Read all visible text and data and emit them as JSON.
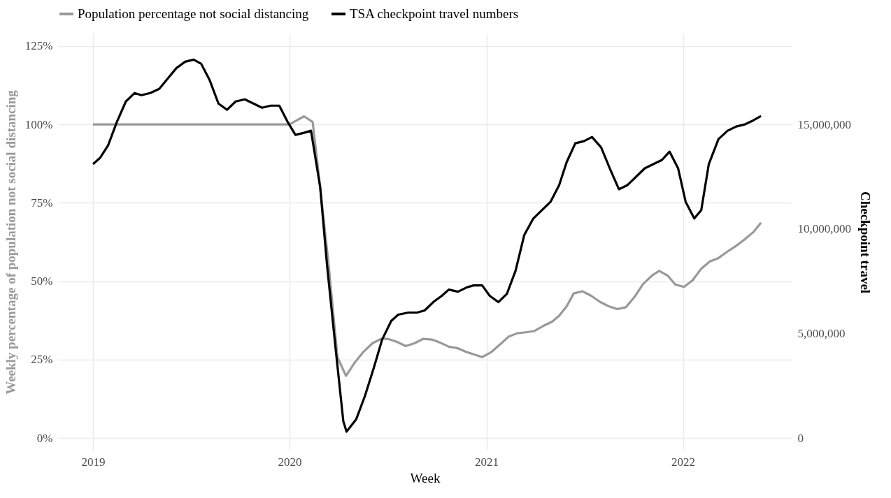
{
  "chart_data": {
    "type": "line",
    "xlabel": "Week",
    "ylabel": "Weekly percentage of population not social distancing",
    "y2label": "Checkpoint travel",
    "xlim": [
      "2018-10-28",
      "2022-07-22"
    ],
    "xticks": [
      "2019",
      "2020",
      "2021",
      "2022"
    ],
    "ylim": [
      -4,
      129
    ],
    "yticks": [
      {
        "value": 0,
        "label": "0%"
      },
      {
        "value": 25,
        "label": "25%"
      },
      {
        "value": 50,
        "label": "50%"
      },
      {
        "value": 75,
        "label": "75%"
      },
      {
        "value": 100,
        "label": "100%"
      },
      {
        "value": 125,
        "label": "125%"
      }
    ],
    "y2lim": [
      -600000,
      19350000
    ],
    "y2ticks": [
      0,
      {
        "value": 5000000,
        "label": "5,000,000"
      },
      {
        "value": 10000000,
        "label": "10,000,000"
      },
      {
        "value": 15000000,
        "label": "15,000,000"
      }
    ],
    "grid": true,
    "legend": "top",
    "series": [
      {
        "name": "Population percentage not social distancing",
        "color": "#999999",
        "x": [
          "2019-01-01",
          "2019-07-01",
          "2020-01-01",
          "2020-01-28",
          "2020-02-13",
          "2020-02-27",
          "2020-03-14",
          "2020-03-30",
          "2020-04-15",
          "2020-05-01",
          "2020-05-17",
          "2020-06-03",
          "2020-06-19",
          "2020-07-02",
          "2020-07-18",
          "2020-08-04",
          "2020-08-20",
          "2020-09-05",
          "2020-09-21",
          "2020-10-07",
          "2020-10-23",
          "2020-11-09",
          "2020-11-25",
          "2020-12-11",
          "2020-12-24",
          "2021-01-10",
          "2021-01-26",
          "2021-02-11",
          "2021-02-27",
          "2021-03-15",
          "2021-03-31",
          "2021-04-16",
          "2021-05-03",
          "2021-05-16",
          "2021-05-30",
          "2021-06-12",
          "2021-06-28",
          "2021-07-14",
          "2021-07-31",
          "2021-08-16",
          "2021-09-01",
          "2021-09-17",
          "2021-10-03",
          "2021-10-19",
          "2021-11-05",
          "2021-11-18",
          "2021-12-04",
          "2021-12-18",
          "2022-01-03",
          "2022-01-19",
          "2022-02-04",
          "2022-02-20",
          "2022-03-08",
          "2022-03-25",
          "2022-04-10",
          "2022-04-26",
          "2022-05-12",
          "2022-05-26"
        ],
        "values": [
          100,
          100,
          100,
          102.6,
          100.8,
          80,
          54.7,
          25.8,
          19.8,
          24,
          27.4,
          30.2,
          31.6,
          31.6,
          30.7,
          29.3,
          30.2,
          31.6,
          31.4,
          30.4,
          29.1,
          28.6,
          27.4,
          26.5,
          25.8,
          27.4,
          29.8,
          32.3,
          33.4,
          33.7,
          34.1,
          35.7,
          37.1,
          39,
          42,
          46.1,
          46.8,
          45.4,
          43.4,
          42,
          41.1,
          41.7,
          45,
          49.1,
          51.9,
          53.3,
          51.7,
          48.9,
          48.2,
          50.3,
          54,
          56.3,
          57.4,
          59.5,
          61.3,
          63.4,
          65.7,
          68.7
        ]
      },
      {
        "name": "TSA checkpoint travel numbers",
        "color": "#000000",
        "axis": "y2",
        "x": [
          "2019-01-01",
          "2019-01-14",
          "2019-01-29",
          "2019-02-14",
          "2019-03-03",
          "2019-03-19",
          "2019-04-01",
          "2019-04-17",
          "2019-05-04",
          "2019-05-20",
          "2019-06-05",
          "2019-06-21",
          "2019-07-07",
          "2019-07-21",
          "2019-08-06",
          "2019-08-22",
          "2019-09-07",
          "2019-09-23",
          "2019-10-10",
          "2019-10-26",
          "2019-11-11",
          "2019-11-27",
          "2019-12-13",
          "2019-12-29",
          "2020-01-12",
          "2020-01-28",
          "2020-02-10",
          "2020-02-27",
          "2020-03-11",
          "2020-03-27",
          "2020-04-10",
          "2020-04-16",
          "2020-05-04",
          "2020-05-20",
          "2020-06-05",
          "2020-06-21",
          "2020-07-08",
          "2020-07-21",
          "2020-08-09",
          "2020-08-25",
          "2020-09-08",
          "2020-09-24",
          "2020-10-10",
          "2020-10-23",
          "2020-11-09",
          "2020-11-25",
          "2020-12-08",
          "2020-12-24",
          "2021-01-07",
          "2021-01-23",
          "2021-02-08",
          "2021-02-24",
          "2021-03-12",
          "2021-03-29",
          "2021-04-14",
          "2021-04-30",
          "2021-05-16",
          "2021-05-30",
          "2021-06-15",
          "2021-07-01",
          "2021-07-16",
          "2021-08-02",
          "2021-08-18",
          "2021-09-04",
          "2021-09-20",
          "2021-10-06",
          "2021-10-22",
          "2021-11-07",
          "2021-11-23",
          "2021-12-07",
          "2021-12-23",
          "2022-01-06",
          "2022-01-22",
          "2022-02-04",
          "2022-02-18",
          "2022-03-08",
          "2022-03-25",
          "2022-04-10",
          "2022-04-26",
          "2022-05-12",
          "2022-05-26"
        ],
        "values": [
          13100000,
          13400000,
          14000000,
          15100000,
          16100000,
          16500000,
          16400000,
          16500000,
          16700000,
          17200000,
          17700000,
          18000000,
          18100000,
          17900000,
          17100000,
          16000000,
          15700000,
          16100000,
          16200000,
          16000000,
          15800000,
          15900000,
          15900000,
          15100000,
          14500000,
          14600000,
          14700000,
          12000000,
          8200000,
          4200000,
          800000,
          300000,
          900000,
          2000000,
          3300000,
          4700000,
          5600000,
          5900000,
          6000000,
          6000000,
          6100000,
          6500000,
          6800000,
          7100000,
          7000000,
          7200000,
          7300000,
          7300000,
          6800000,
          6500000,
          6900000,
          8000000,
          9700000,
          10500000,
          10900000,
          11300000,
          12100000,
          13200000,
          14100000,
          14200000,
          14400000,
          13900000,
          12900000,
          11900000,
          12100000,
          12500000,
          12900000,
          13100000,
          13300000,
          13700000,
          12900000,
          11300000,
          10500000,
          10900000,
          13100000,
          14300000,
          14700000,
          14900000,
          15000000,
          15200000,
          15400000
        ]
      }
    ]
  }
}
